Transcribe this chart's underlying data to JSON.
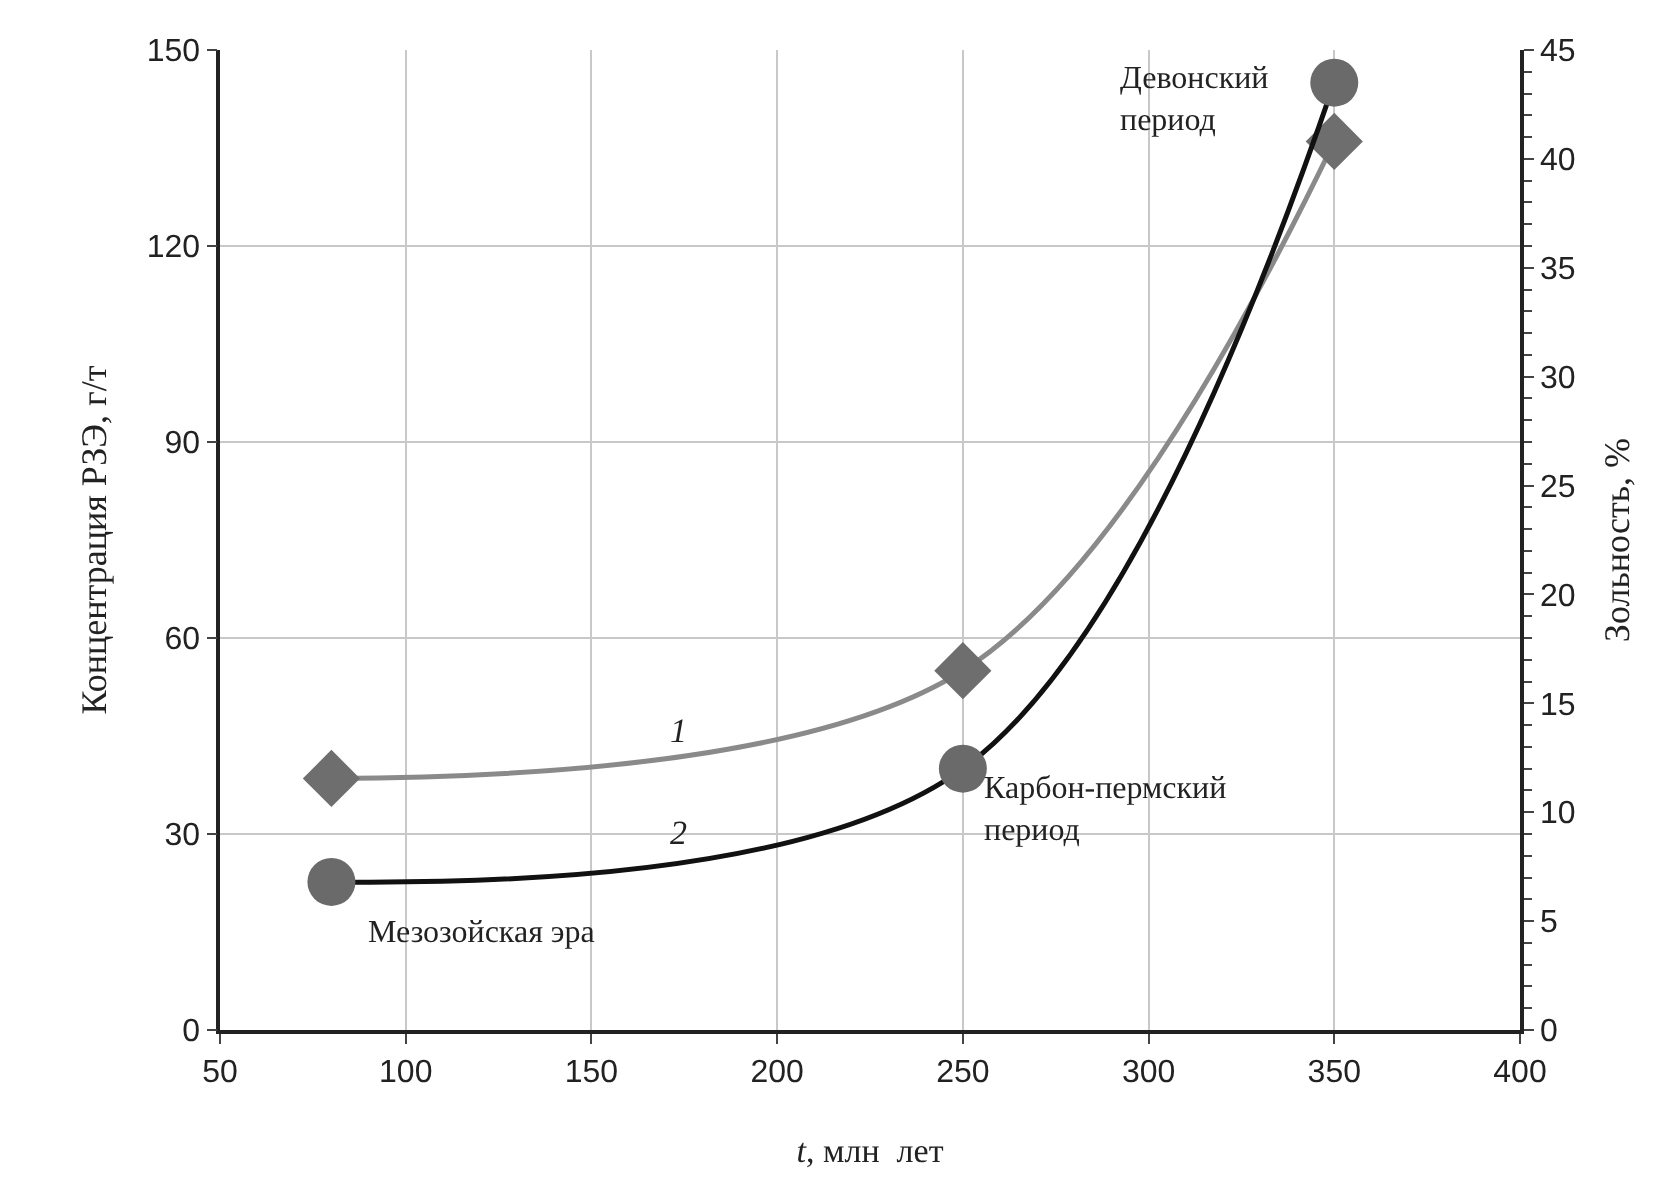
{
  "chart_data": {
    "type": "line",
    "xlabel": "t, млн  лет",
    "ylabel": "Концентрация РЗЭ, г/т",
    "y2label": "Зольность, %",
    "x": [
      80,
      250,
      350
    ],
    "series": [
      {
        "name": "1",
        "color": "#8a8a8a",
        "colors": [
          "#6e6e6e",
          "#6e6e6e",
          "#6e6e6e"
        ],
        "marker": "diamond",
        "values": [
          38.5,
          55,
          136
        ]
      },
      {
        "name": "2",
        "color": "#111111",
        "colors": [
          "#6a6a6a",
          "#6a6a6a",
          "#6a6a6a"
        ],
        "marker": "circle",
        "axis": "y2",
        "values": [
          6.8,
          12,
          43.5
        ]
      }
    ],
    "xlim": [
      50,
      400
    ],
    "xticks": [
      50,
      100,
      150,
      200,
      250,
      300,
      350,
      400
    ],
    "ylim": [
      0,
      150
    ],
    "yticks": [
      0,
      30,
      60,
      90,
      120,
      150
    ],
    "y2lim": [
      0,
      45
    ],
    "y2ticks": [
      0,
      5,
      10,
      15,
      20,
      25,
      30,
      35,
      40,
      45
    ],
    "grid": true,
    "legend": false,
    "line_style": "solid",
    "annotations": [
      "Мезозойская эра",
      "Карбон-пермский\nпериод",
      "Девонский\nпериод"
    ]
  }
}
